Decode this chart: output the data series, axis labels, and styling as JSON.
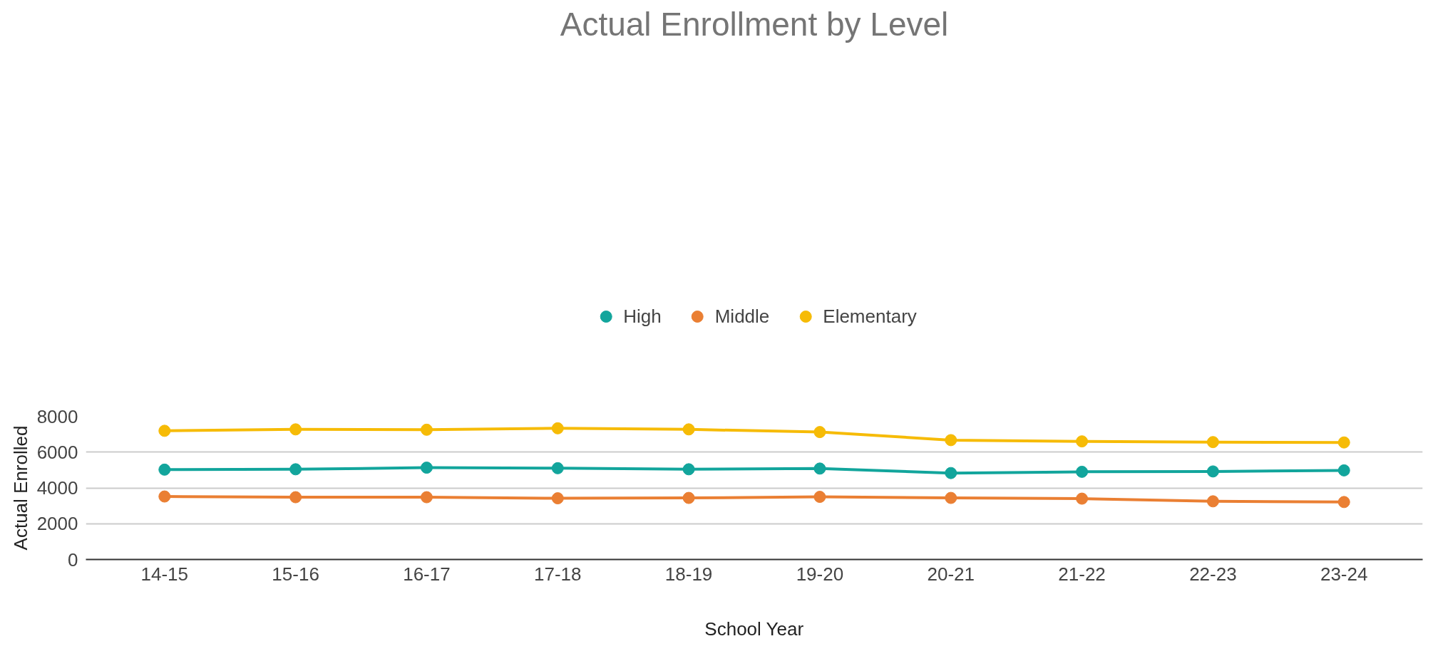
{
  "chart_data": {
    "type": "line",
    "title": "Actual Enrollment by Level",
    "xlabel": "School Year",
    "ylabel": "Actual Enrolled",
    "categories": [
      "14-15",
      "15-16",
      "16-17",
      "17-18",
      "18-19",
      "19-20",
      "20-21",
      "21-22",
      "22-23",
      "23-24"
    ],
    "series": [
      {
        "name": "High",
        "color": "#12a59c",
        "values": [
          5020,
          5040,
          5130,
          5100,
          5040,
          5080,
          4830,
          4900,
          4920,
          4980
        ]
      },
      {
        "name": "Middle",
        "color": "#ea7f33",
        "values": [
          3520,
          3480,
          3480,
          3420,
          3440,
          3500,
          3440,
          3400,
          3250,
          3210
        ]
      },
      {
        "name": "Elementary",
        "color": "#f6bb06",
        "values": [
          7190,
          7270,
          7250,
          7330,
          7270,
          7120,
          6670,
          6600,
          6560,
          6540
        ]
      }
    ],
    "ylim": [
      0,
      8000
    ],
    "yticks": [
      0,
      2000,
      4000,
      6000,
      8000
    ],
    "grid": "y",
    "legend": "top",
    "marker": "circle",
    "line_style": "solid"
  }
}
